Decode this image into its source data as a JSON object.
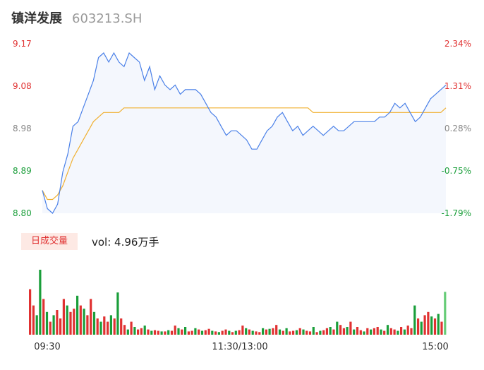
{
  "header": {
    "name": "镇洋发展",
    "code": "603213.SH"
  },
  "volume_panel": {
    "badge": "日成交量",
    "label": "vol: 4.96万手"
  },
  "colors": {
    "up": "#e03131",
    "down": "#1a9e3a",
    "neutral": "#888888",
    "price_line": "#4a80e8",
    "avg_line": "#f0b030",
    "area": "#f4f7fd"
  },
  "chart_data": [
    {
      "type": "line",
      "x_ticks": [
        "09:30",
        "11:30/13:00",
        "15:00"
      ],
      "ylim": [
        8.8,
        9.17
      ],
      "y_ticks": [
        "9.17",
        "9.08",
        "8.98",
        "8.89",
        "8.80"
      ],
      "y_tick_colors": [
        "#e03131",
        "#e03131",
        "#888888",
        "#1a9e3a",
        "#1a9e3a"
      ],
      "pct_ticks": [
        "2.34%",
        "1.31%",
        "0.28%",
        "-0.75%",
        "-1.79%"
      ],
      "series": [
        {
          "role": "price",
          "values": [
            8.85,
            8.81,
            8.8,
            8.82,
            8.89,
            8.93,
            8.99,
            9.0,
            9.03,
            9.06,
            9.09,
            9.14,
            9.15,
            9.13,
            9.15,
            9.13,
            9.12,
            9.15,
            9.14,
            9.13,
            9.09,
            9.12,
            9.07,
            9.1,
            9.08,
            9.07,
            9.08,
            9.06,
            9.07,
            9.07,
            9.07,
            9.06,
            9.04,
            9.02,
            9.01,
            8.99,
            8.97,
            8.98,
            8.98,
            8.97,
            8.96,
            8.94,
            8.94,
            8.96,
            8.98,
            8.99,
            9.01,
            9.02,
            9.0,
            8.98,
            8.99,
            8.97,
            8.98,
            8.99,
            8.98,
            8.97,
            8.98,
            8.99,
            8.98,
            8.98,
            8.99,
            9.0,
            9.0,
            9.0,
            9.0,
            9.0,
            9.01,
            9.01,
            9.02,
            9.04,
            9.03,
            9.04,
            9.02,
            9.0,
            9.01,
            9.03,
            9.05,
            9.06,
            9.07,
            9.08
          ]
        },
        {
          "role": "average",
          "values": [
            8.85,
            8.83,
            8.83,
            8.84,
            8.86,
            8.89,
            8.92,
            8.94,
            8.96,
            8.98,
            9.0,
            9.01,
            9.02,
            9.02,
            9.02,
            9.02,
            9.03,
            9.03,
            9.03,
            9.03,
            9.03,
            9.03,
            9.03,
            9.03,
            9.03,
            9.03,
            9.03,
            9.03,
            9.03,
            9.03,
            9.03,
            9.03,
            9.03,
            9.03,
            9.03,
            9.03,
            9.03,
            9.03,
            9.03,
            9.03,
            9.03,
            9.03,
            9.03,
            9.03,
            9.03,
            9.03,
            9.03,
            9.03,
            9.03,
            9.03,
            9.03,
            9.03,
            9.03,
            9.02,
            9.02,
            9.02,
            9.02,
            9.02,
            9.02,
            9.02,
            9.02,
            9.02,
            9.02,
            9.02,
            9.02,
            9.02,
            9.02,
            9.02,
            9.02,
            9.02,
            9.02,
            9.02,
            9.02,
            9.02,
            9.02,
            9.02,
            9.02,
            9.02,
            9.02,
            9.03
          ]
        }
      ]
    },
    {
      "type": "bar",
      "values": [
        0.7,
        0.45,
        0.3,
        1.0,
        0.55,
        0.35,
        0.2,
        0.3,
        0.38,
        0.25,
        0.55,
        0.45,
        0.35,
        0.4,
        0.6,
        0.45,
        0.4,
        0.3,
        0.55,
        0.35,
        0.25,
        0.2,
        0.28,
        0.2,
        0.3,
        0.25,
        0.65,
        0.25,
        0.15,
        0.08,
        0.2,
        0.12,
        0.08,
        0.1,
        0.14,
        0.08,
        0.06,
        0.07,
        0.06,
        0.05,
        0.05,
        0.07,
        0.06,
        0.14,
        0.1,
        0.08,
        0.12,
        0.05,
        0.06,
        0.1,
        0.08,
        0.06,
        0.07,
        0.09,
        0.06,
        0.05,
        0.04,
        0.06,
        0.08,
        0.06,
        0.04,
        0.06,
        0.07,
        0.14,
        0.1,
        0.08,
        0.06,
        0.05,
        0.04,
        0.1,
        0.08,
        0.09,
        0.1,
        0.15,
        0.08,
        0.06,
        0.1,
        0.05,
        0.06,
        0.07,
        0.1,
        0.08,
        0.06,
        0.05,
        0.12,
        0.04,
        0.06,
        0.07,
        0.1,
        0.12,
        0.08,
        0.2,
        0.15,
        0.1,
        0.12,
        0.2,
        0.08,
        0.12,
        0.07,
        0.05,
        0.1,
        0.08,
        0.1,
        0.12,
        0.08,
        0.06,
        0.15,
        0.1,
        0.08,
        0.06,
        0.12,
        0.08,
        0.14,
        0.1,
        0.45,
        0.25,
        0.2,
        0.3,
        0.35,
        0.28,
        0.25,
        0.32,
        0.2,
        0.66
      ],
      "directions": [
        "u",
        "u",
        "d",
        "d",
        "u",
        "d",
        "u",
        "d",
        "u",
        "u",
        "u",
        "d",
        "u",
        "u",
        "d",
        "u",
        "d",
        "u",
        "u",
        "d",
        "u",
        "d",
        "u",
        "u",
        "d",
        "u",
        "d",
        "u",
        "u",
        "d",
        "u",
        "d",
        "u",
        "u",
        "d",
        "u",
        "d",
        "u",
        "u",
        "d",
        "u",
        "d",
        "u",
        "u",
        "d",
        "u",
        "d",
        "u",
        "u",
        "d",
        "u",
        "d",
        "u",
        "u",
        "d",
        "u",
        "d",
        "u",
        "u",
        "d",
        "u",
        "d",
        "u",
        "u",
        "d",
        "u",
        "d",
        "u",
        "u",
        "d",
        "u",
        "d",
        "u",
        "u",
        "d",
        "u",
        "d",
        "u",
        "u",
        "d",
        "u",
        "d",
        "u",
        "u",
        "d",
        "u",
        "d",
        "u",
        "u",
        "d",
        "u",
        "d",
        "u",
        "u",
        "d",
        "u",
        "d",
        "u",
        "u",
        "d",
        "u",
        "d",
        "u",
        "u",
        "d",
        "u",
        "d",
        "u",
        "u",
        "d",
        "u",
        "d",
        "u",
        "u",
        "d",
        "u",
        "d",
        "u",
        "u",
        "d",
        "u",
        "d",
        "u",
        "n"
      ]
    }
  ]
}
